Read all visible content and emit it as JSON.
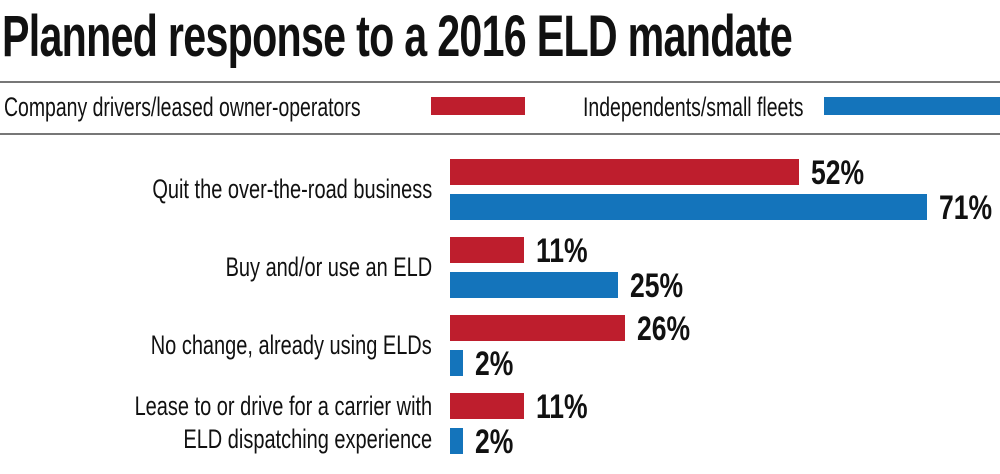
{
  "chart_data": {
    "type": "bar",
    "orientation": "horizontal",
    "title": "Planned response to a 2016 ELD mandate",
    "categories": [
      "Quit the over-the-road business",
      "Buy and/or use an ELD",
      "No change, already using ELDs",
      "Lease to or drive for a carrier with ELD dispatching experience"
    ],
    "category_lines": [
      [
        "Quit the over-the-road business"
      ],
      [
        "Buy and/or use an ELD"
      ],
      [
        "No change, already using ELDs"
      ],
      [
        "Lease to or drive for a carrier with",
        "ELD dispatching experience"
      ]
    ],
    "series": [
      {
        "name": "Company drivers/leased owner-operators",
        "color": "#be1e2d",
        "values": [
          52,
          11,
          26,
          11
        ],
        "labels": [
          "52%",
          "11%",
          "26%",
          "11%"
        ]
      },
      {
        "name": "Independents/small fleets",
        "color": "#1474bb",
        "values": [
          71,
          25,
          2,
          2
        ],
        "labels": [
          "71%",
          "25%",
          "2%",
          "2%"
        ]
      }
    ],
    "unit": "%",
    "legend": "top",
    "grid": false
  }
}
